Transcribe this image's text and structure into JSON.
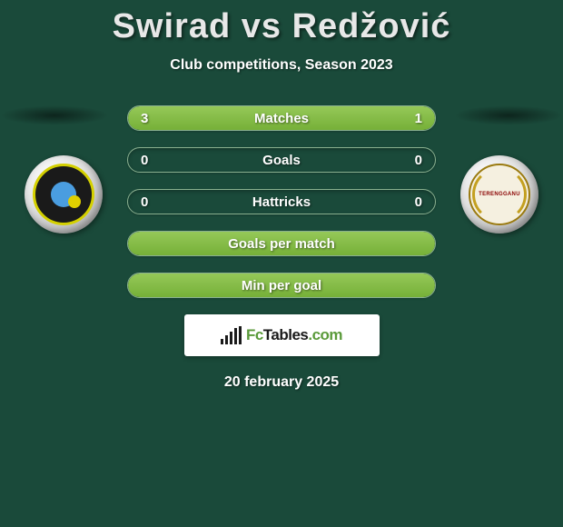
{
  "title": {
    "player1": "Swirad",
    "vs": "vs",
    "player2": "Redžović"
  },
  "subtitle": "Club competitions, Season 2023",
  "stats": [
    {
      "label": "Matches",
      "left_val": "3",
      "right_val": "1",
      "left_pct": 75,
      "right_pct": 25,
      "has_values": true,
      "full_fill": false
    },
    {
      "label": "Goals",
      "left_val": "0",
      "right_val": "0",
      "left_pct": 0,
      "right_pct": 0,
      "has_values": true,
      "full_fill": false
    },
    {
      "label": "Hattricks",
      "left_val": "0",
      "right_val": "0",
      "left_pct": 0,
      "right_pct": 0,
      "has_values": true,
      "full_fill": false
    },
    {
      "label": "Goals per match",
      "has_values": false,
      "full_fill": true
    },
    {
      "label": "Min per goal",
      "has_values": false,
      "full_fill": true
    }
  ],
  "badges": {
    "right_text": "TERENGGANU"
  },
  "logo": {
    "text_prefix": "Fc",
    "text_main": "Tables",
    "text_suffix": ".com"
  },
  "date": "20 february 2025",
  "colors": {
    "background": "#1a4a3a",
    "bar_fill_top": "#95c858",
    "bar_fill_bottom": "#76b038",
    "bar_border": "#8ab090",
    "text": "#ffffff",
    "logo_green": "#5a9a3a"
  }
}
